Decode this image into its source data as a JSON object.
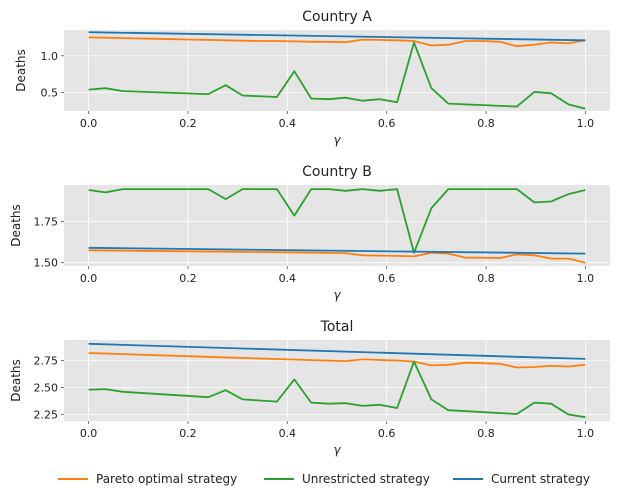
{
  "colors": {
    "pareto": "#ff7f0e",
    "unrestricted": "#2ca02c",
    "current": "#1f77b4",
    "panel_bg": "#e5e5e5",
    "grid": "#ffffff"
  },
  "legend": {
    "pareto": "Pareto optimal strategy",
    "unrestricted": "Unrestricted strategy",
    "current": "Current strategy"
  },
  "chart_data": [
    {
      "type": "line",
      "title": "Country A",
      "xlabel": "γ",
      "ylabel": "Deaths",
      "xlim": [
        0,
        1
      ],
      "ylim": [
        0.25,
        1.35
      ],
      "xticks": [
        "0.0",
        "0.2",
        "0.4",
        "0.6",
        "0.8",
        "1.0"
      ],
      "yticks": [
        "0.5",
        "1.0"
      ],
      "grid": true,
      "series": [
        {
          "name": "Pareto optimal strategy",
          "key": "pareto",
          "x": [
            0,
            0.034,
            0.069,
            0.103,
            0.138,
            0.172,
            0.207,
            0.241,
            0.276,
            0.31,
            0.345,
            0.379,
            0.414,
            0.448,
            0.483,
            0.517,
            0.552,
            0.586,
            0.621,
            0.655,
            0.69,
            0.724,
            0.759,
            0.793,
            0.828,
            0.862,
            0.897,
            0.931,
            0.966,
            1.0
          ],
          "y": [
            1.25,
            1.245,
            1.24,
            1.235,
            1.23,
            1.225,
            1.22,
            1.215,
            1.21,
            1.205,
            1.2,
            1.2,
            1.195,
            1.19,
            1.19,
            1.185,
            1.22,
            1.215,
            1.21,
            1.2,
            1.14,
            1.15,
            1.2,
            1.2,
            1.19,
            1.13,
            1.15,
            1.18,
            1.17,
            1.21
          ]
        },
        {
          "name": "Unrestricted strategy",
          "key": "unrestricted",
          "x": [
            0,
            0.034,
            0.069,
            0.241,
            0.276,
            0.31,
            0.379,
            0.414,
            0.448,
            0.483,
            0.517,
            0.552,
            0.586,
            0.621,
            0.655,
            0.69,
            0.724,
            0.862,
            0.897,
            0.931,
            0.966,
            1.0
          ],
          "y": [
            0.54,
            0.56,
            0.52,
            0.48,
            0.6,
            0.46,
            0.44,
            0.79,
            0.42,
            0.41,
            0.43,
            0.39,
            0.41,
            0.37,
            1.18,
            0.56,
            0.35,
            0.31,
            0.51,
            0.49,
            0.34,
            0.28
          ]
        },
        {
          "name": "Current strategy",
          "key": "current",
          "x": [
            0,
            1.0
          ],
          "y": [
            1.32,
            1.21
          ]
        }
      ]
    },
    {
      "type": "line",
      "title": "Country B",
      "xlabel": "γ",
      "ylabel": "Deaths",
      "xlim": [
        0,
        1
      ],
      "ylim": [
        1.48,
        1.97
      ],
      "xticks": [
        "0.0",
        "0.2",
        "0.4",
        "0.6",
        "0.8",
        "1.0"
      ],
      "yticks": [
        "1.50",
        "1.75"
      ],
      "grid": true,
      "series": [
        {
          "name": "Pareto optimal strategy",
          "key": "pareto",
          "x": [
            0,
            0.1,
            0.2,
            0.3,
            0.4,
            0.517,
            0.552,
            0.586,
            0.621,
            0.655,
            0.69,
            0.724,
            0.759,
            0.793,
            0.828,
            0.862,
            0.897,
            0.931,
            0.966,
            1.0
          ],
          "y": [
            1.575,
            1.572,
            1.569,
            1.566,
            1.563,
            1.558,
            1.545,
            1.543,
            1.541,
            1.538,
            1.56,
            1.555,
            1.53,
            1.53,
            1.528,
            1.55,
            1.545,
            1.525,
            1.525,
            1.5
          ]
        },
        {
          "name": "Unrestricted strategy",
          "key": "unrestricted",
          "x": [
            0,
            0.034,
            0.069,
            0.241,
            0.276,
            0.31,
            0.379,
            0.414,
            0.448,
            0.483,
            0.517,
            0.552,
            0.586,
            0.621,
            0.655,
            0.69,
            0.724,
            0.862,
            0.897,
            0.931,
            0.966,
            1.0
          ],
          "y": [
            1.94,
            1.925,
            1.945,
            1.945,
            1.885,
            1.945,
            1.945,
            1.785,
            1.945,
            1.945,
            1.935,
            1.945,
            1.935,
            1.945,
            1.56,
            1.83,
            1.945,
            1.945,
            1.865,
            1.87,
            1.915,
            1.94
          ]
        },
        {
          "name": "Current strategy",
          "key": "current",
          "x": [
            0,
            1.0
          ],
          "y": [
            1.59,
            1.555
          ]
        }
      ]
    },
    {
      "type": "line",
      "title": "Total",
      "xlabel": "γ",
      "ylabel": "Deaths",
      "xlim": [
        0,
        1
      ],
      "ylim": [
        2.19,
        2.94
      ],
      "xticks": [
        "0.0",
        "0.2",
        "0.4",
        "0.6",
        "0.8",
        "1.0"
      ],
      "yticks": [
        "2.25",
        "2.50",
        "2.75"
      ],
      "grid": true,
      "series": [
        {
          "name": "Pareto optimal strategy",
          "key": "pareto",
          "x": [
            0,
            0.1,
            0.2,
            0.3,
            0.4,
            0.517,
            0.552,
            0.586,
            0.621,
            0.655,
            0.69,
            0.724,
            0.759,
            0.793,
            0.828,
            0.862,
            0.897,
            0.931,
            0.966,
            1.0
          ],
          "y": [
            2.82,
            2.805,
            2.79,
            2.775,
            2.76,
            2.745,
            2.76,
            2.755,
            2.75,
            2.74,
            2.705,
            2.71,
            2.73,
            2.725,
            2.72,
            2.685,
            2.69,
            2.7,
            2.695,
            2.71
          ]
        },
        {
          "name": "Unrestricted strategy",
          "key": "unrestricted",
          "x": [
            0,
            0.034,
            0.069,
            0.241,
            0.276,
            0.31,
            0.379,
            0.414,
            0.448,
            0.483,
            0.517,
            0.552,
            0.586,
            0.621,
            0.655,
            0.69,
            0.724,
            0.862,
            0.897,
            0.931,
            0.966,
            1.0
          ],
          "y": [
            2.48,
            2.485,
            2.46,
            2.41,
            2.475,
            2.39,
            2.37,
            2.575,
            2.36,
            2.35,
            2.355,
            2.33,
            2.34,
            2.31,
            2.74,
            2.39,
            2.29,
            2.255,
            2.36,
            2.35,
            2.25,
            2.225
          ]
        },
        {
          "name": "Current strategy",
          "key": "current",
          "x": [
            0,
            1.0
          ],
          "y": [
            2.905,
            2.765
          ]
        }
      ]
    }
  ]
}
